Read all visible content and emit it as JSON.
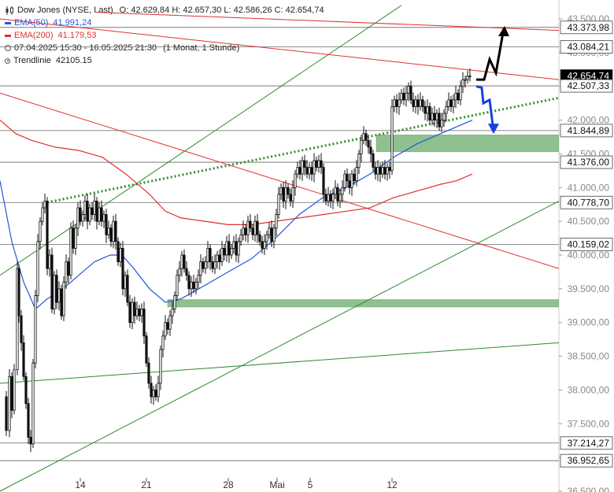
{
  "legend": {
    "title": "Dow Jones (NYSE, Last)",
    "ohlc": "O: 42.629,84  H: 42.657,30  L: 42.586,26  C: 42.654,74",
    "ema50_label": "EMA(50)",
    "ema50_value": "41.991,24",
    "ema200_label": "EMA(200)",
    "ema200_value": "41.179,53",
    "period": "07.04.2025 15:30 - 16.05.2025 21:30",
    "interval": "(1 Monat, 1 Stunde)",
    "trend_label": "Trendlinie",
    "trend_value": "42105.15",
    "icon": "candlestick-icon"
  },
  "colors": {
    "ema50": "#2255dd",
    "ema200": "#e03030",
    "trend": "#2e8b2e",
    "zone": "#8fc08f",
    "resistance": "#e03030",
    "current": "#000000"
  },
  "chart_data": {
    "type": "candlestick",
    "title": "Dow Jones (NYSE, Last)",
    "ylim": [
      36500,
      43700
    ],
    "y_ticks": [
      "43.500,00",
      "43.000,00",
      "42.500,00",
      "42.000,00",
      "41.500,00",
      "41.000,00",
      "40.500,00",
      "40.000,00",
      "39.500,00",
      "39.000,00",
      "38.500,00",
      "38.000,00",
      "37.500,00",
      "37.000,00",
      "36.500,00"
    ],
    "y_tick_values": [
      43500,
      43000,
      42500,
      42000,
      41500,
      41000,
      40500,
      40000,
      39500,
      39000,
      38500,
      38000,
      37500,
      37000,
      36500
    ],
    "x_ticks": [
      {
        "label": "14",
        "day": "2025-04-14"
      },
      {
        "label": "21",
        "day": "2025-04-21"
      },
      {
        "label": "28",
        "day": "2025-04-28"
      },
      {
        "label": "Mai",
        "day": "2025-05-01"
      },
      {
        "label": "5",
        "day": "2025-05-05"
      },
      {
        "label": "12",
        "day": "2025-05-12"
      }
    ],
    "price_levels": [
      {
        "label": "43.373,98",
        "value": 43373.98,
        "style": "plain"
      },
      {
        "label": "43.084,21",
        "value": 43084.21,
        "style": "plain"
      },
      {
        "label": "42.654,74",
        "value": 42654.74,
        "style": "current"
      },
      {
        "label": "42.507,33",
        "value": 42507.33,
        "style": "plain"
      },
      {
        "label": "41.844,89",
        "value": 41844.89,
        "style": "plain"
      },
      {
        "label": "41.376,00",
        "value": 41376.0,
        "style": "plain"
      },
      {
        "label": "40.778,70",
        "value": 40778.7,
        "style": "plain"
      },
      {
        "label": "40.159,02",
        "value": 40159.02,
        "style": "plain"
      },
      {
        "label": "37.214,27",
        "value": 37214.27,
        "style": "plain"
      },
      {
        "label": "36.952,65",
        "value": 36952.65,
        "style": "plain"
      }
    ],
    "zones": [
      {
        "from": 41530,
        "to": 41780
      },
      {
        "from": 39230,
        "to": 39340
      }
    ],
    "price_path": [
      [
        5,
        37900
      ],
      [
        8,
        37400
      ],
      [
        12,
        38200
      ],
      [
        15,
        37700
      ],
      [
        18,
        38300
      ],
      [
        22,
        39800
      ],
      [
        24,
        39100
      ],
      [
        27,
        38700
      ],
      [
        30,
        38200
      ],
      [
        33,
        37800
      ],
      [
        36,
        37300
      ],
      [
        39,
        37200
      ],
      [
        42,
        38400
      ],
      [
        45,
        39400
      ],
      [
        48,
        40200
      ],
      [
        51,
        40500
      ],
      [
        54,
        40700
      ],
      [
        57,
        40800
      ],
      [
        60,
        39800
      ],
      [
        63,
        40000
      ],
      [
        66,
        39200
      ],
      [
        69,
        39700
      ],
      [
        72,
        39300
      ],
      [
        75,
        39500
      ],
      [
        78,
        39100
      ],
      [
        81,
        39600
      ],
      [
        84,
        39900
      ],
      [
        87,
        39700
      ],
      [
        90,
        40400
      ],
      [
        93,
        40100
      ],
      [
        96,
        40400
      ],
      [
        99,
        40700
      ],
      [
        102,
        40500
      ],
      [
        105,
        40600
      ],
      [
        108,
        40800
      ],
      [
        111,
        40500
      ],
      [
        114,
        40700
      ],
      [
        117,
        40600
      ],
      [
        120,
        40800
      ],
      [
        123,
        40500
      ],
      [
        126,
        40700
      ],
      [
        129,
        40500
      ],
      [
        132,
        40600
      ],
      [
        135,
        40300
      ],
      [
        138,
        40400
      ],
      [
        141,
        40200
      ],
      [
        144,
        40500
      ],
      [
        147,
        40200
      ],
      [
        150,
        39900
      ],
      [
        153,
        40100
      ],
      [
        156,
        39500
      ],
      [
        159,
        39700
      ],
      [
        162,
        39300
      ],
      [
        165,
        39000
      ],
      [
        168,
        39300
      ],
      [
        171,
        39100
      ],
      [
        174,
        39200
      ],
      [
        177,
        39100
      ],
      [
        180,
        39200
      ],
      [
        183,
        38800
      ],
      [
        186,
        38400
      ],
      [
        189,
        38100
      ],
      [
        192,
        37900
      ],
      [
        195,
        38000
      ],
      [
        198,
        37900
      ],
      [
        201,
        38100
      ],
      [
        204,
        38600
      ],
      [
        207,
        38800
      ],
      [
        210,
        39000
      ],
      [
        213,
        38900
      ],
      [
        216,
        39100
      ],
      [
        219,
        39200
      ],
      [
        222,
        39400
      ],
      [
        225,
        39700
      ],
      [
        228,
        39800
      ],
      [
        231,
        40000
      ],
      [
        234,
        39800
      ],
      [
        237,
        39700
      ],
      [
        240,
        39500
      ],
      [
        243,
        39600
      ],
      [
        246,
        39500
      ],
      [
        249,
        39600
      ],
      [
        252,
        39700
      ],
      [
        255,
        39900
      ],
      [
        258,
        39800
      ],
      [
        261,
        39900
      ],
      [
        264,
        40100
      ],
      [
        267,
        39900
      ],
      [
        270,
        39800
      ],
      [
        273,
        39900
      ],
      [
        276,
        40000
      ],
      [
        279,
        39900
      ],
      [
        282,
        40100
      ],
      [
        285,
        40000
      ],
      [
        288,
        40200
      ],
      [
        291,
        40000
      ],
      [
        294,
        40100
      ],
      [
        297,
        40200
      ],
      [
        300,
        40000
      ],
      [
        303,
        40200
      ],
      [
        306,
        40300
      ],
      [
        309,
        40400
      ],
      [
        312,
        40300
      ],
      [
        315,
        40500
      ],
      [
        318,
        40400
      ],
      [
        321,
        40300
      ],
      [
        324,
        40500
      ],
      [
        327,
        40300
      ],
      [
        330,
        40200
      ],
      [
        333,
        40100
      ],
      [
        336,
        40200
      ],
      [
        339,
        40300
      ],
      [
        342,
        40400
      ],
      [
        345,
        40200
      ],
      [
        348,
        40400
      ],
      [
        351,
        40600
      ],
      [
        354,
        40900
      ],
      [
        357,
        41000
      ],
      [
        360,
        40800
      ],
      [
        363,
        41000
      ],
      [
        366,
        40900
      ],
      [
        369,
        40800
      ],
      [
        372,
        41000
      ],
      [
        375,
        41200
      ],
      [
        378,
        41300
      ],
      [
        381,
        41200
      ],
      [
        384,
        41400
      ],
      [
        387,
        41300
      ],
      [
        390,
        41200
      ],
      [
        393,
        41300
      ],
      [
        396,
        41200
      ],
      [
        399,
        41400
      ],
      [
        402,
        41300
      ],
      [
        405,
        41400
      ],
      [
        408,
        41300
      ],
      [
        411,
        40900
      ],
      [
        414,
        40800
      ],
      [
        417,
        40900
      ],
      [
        420,
        40800
      ],
      [
        423,
        40900
      ],
      [
        426,
        41000
      ],
      [
        429,
        40800
      ],
      [
        432,
        40900
      ],
      [
        435,
        41000
      ],
      [
        438,
        41200
      ],
      [
        441,
        41100
      ],
      [
        444,
        41000
      ],
      [
        447,
        41200
      ],
      [
        450,
        41100
      ],
      [
        453,
        41300
      ],
      [
        456,
        41500
      ],
      [
        459,
        41700
      ],
      [
        462,
        41800
      ],
      [
        465,
        41700
      ],
      [
        468,
        41600
      ],
      [
        471,
        41500
      ],
      [
        474,
        41300
      ],
      [
        477,
        41200
      ],
      [
        480,
        41300
      ],
      [
        483,
        41200
      ],
      [
        486,
        41300
      ],
      [
        489,
        41200
      ],
      [
        492,
        41300
      ],
      [
        495,
        41250
      ],
      [
        498,
        42200
      ],
      [
        501,
        42300
      ],
      [
        504,
        42200
      ],
      [
        507,
        42300
      ],
      [
        510,
        42400
      ],
      [
        513,
        42300
      ],
      [
        516,
        42400
      ],
      [
        519,
        42500
      ],
      [
        522,
        42300
      ],
      [
        525,
        42200
      ],
      [
        528,
        42300
      ],
      [
        531,
        42200
      ],
      [
        534,
        42300
      ],
      [
        537,
        42200
      ],
      [
        540,
        42100
      ],
      [
        543,
        42200
      ],
      [
        546,
        42000
      ],
      [
        549,
        42100
      ],
      [
        552,
        42000
      ],
      [
        555,
        42100
      ],
      [
        558,
        41900
      ],
      [
        561,
        42000
      ],
      [
        564,
        42100
      ],
      [
        567,
        42200
      ],
      [
        570,
        42300
      ],
      [
        573,
        42200
      ],
      [
        576,
        42300
      ],
      [
        579,
        42400
      ],
      [
        582,
        42300
      ],
      [
        585,
        42500
      ],
      [
        588,
        42600
      ],
      [
        591,
        42600
      ],
      [
        594,
        42650
      ],
      [
        597,
        42655
      ]
    ],
    "ema50_path": [
      [
        0,
        41100
      ],
      [
        15,
        40200
      ],
      [
        30,
        39600
      ],
      [
        45,
        39200
      ],
      [
        60,
        39350
      ],
      [
        80,
        39500
      ],
      [
        100,
        39700
      ],
      [
        120,
        39900
      ],
      [
        140,
        40000
      ],
      [
        155,
        40000
      ],
      [
        170,
        39800
      ],
      [
        190,
        39500
      ],
      [
        210,
        39300
      ],
      [
        230,
        39350
      ],
      [
        260,
        39550
      ],
      [
        290,
        39750
      ],
      [
        320,
        39950
      ],
      [
        350,
        40250
      ],
      [
        380,
        40600
      ],
      [
        410,
        40850
      ],
      [
        440,
        41000
      ],
      [
        470,
        41200
      ],
      [
        500,
        41450
      ],
      [
        530,
        41650
      ],
      [
        560,
        41800
      ],
      [
        580,
        41900
      ],
      [
        600,
        42000
      ]
    ],
    "ema200_path": [
      [
        0,
        42000
      ],
      [
        20,
        41800
      ],
      [
        40,
        41700
      ],
      [
        70,
        41600
      ],
      [
        100,
        41550
      ],
      [
        130,
        41450
      ],
      [
        160,
        41200
      ],
      [
        190,
        40900
      ],
      [
        210,
        40650
      ],
      [
        230,
        40550
      ],
      [
        260,
        40500
      ],
      [
        290,
        40450
      ],
      [
        320,
        40450
      ],
      [
        350,
        40500
      ],
      [
        380,
        40550
      ],
      [
        410,
        40600
      ],
      [
        440,
        40650
      ],
      [
        470,
        40700
      ],
      [
        500,
        40850
      ],
      [
        530,
        40950
      ],
      [
        560,
        41050
      ],
      [
        580,
        41100
      ],
      [
        600,
        41200
      ]
    ],
    "trend_lines": [
      {
        "color": "green",
        "from": [
          0,
          39700
        ],
        "to": [
          510,
          43700
        ]
      },
      {
        "color": "green",
        "from": [
          0,
          36500
        ],
        "to": [
          710,
          40800
        ]
      },
      {
        "color": "green",
        "from": [
          0,
          38100
        ],
        "to": [
          710,
          38700
        ]
      },
      {
        "color": "red",
        "from": [
          0,
          42400
        ],
        "to": [
          710,
          39800
        ]
      },
      {
        "color": "red",
        "from": [
          0,
          43500
        ],
        "to": [
          710,
          42600
        ]
      },
      {
        "color": "red",
        "from": [
          120,
          43600
        ],
        "to": [
          710,
          43330
        ]
      }
    ],
    "dotted_trend": {
      "from": [
        60,
        40780
      ],
      "to": [
        710,
        42330
      ]
    },
    "projection_up": [
      [
        605,
        42600
      ],
      [
        615,
        42600
      ],
      [
        622,
        42900
      ],
      [
        630,
        42700
      ],
      [
        640,
        43360
      ]
    ],
    "projection_down": [
      [
        605,
        42500
      ],
      [
        612,
        42480
      ],
      [
        614,
        42250
      ],
      [
        622,
        42300
      ],
      [
        627,
        41830
      ]
    ],
    "current_marker_value": 42654.74
  }
}
